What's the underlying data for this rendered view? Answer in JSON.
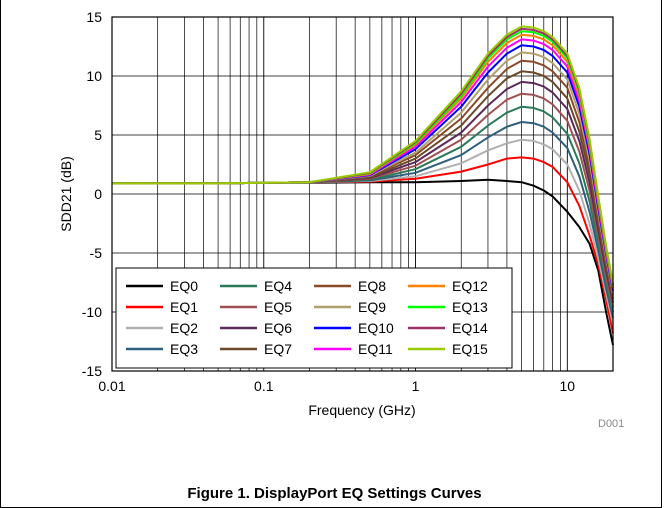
{
  "caption": "Figure 1. DisplayPort EQ Settings Curves",
  "figure_ref": "D001",
  "chart_data": {
    "type": "line",
    "xlabel": "Frequency (GHz)",
    "ylabel": "SDD21 (dB)",
    "xscale": "log",
    "xlim": [
      0.01,
      20
    ],
    "ylim": [
      -15,
      15
    ],
    "x_ticks": [
      0.01,
      0.1,
      1,
      10
    ],
    "x_tick_labels": [
      "0.01",
      "0.1",
      "1",
      "10"
    ],
    "y_ticks": [
      -15,
      -10,
      -5,
      0,
      5,
      10,
      15
    ],
    "y_tick_labels": [
      "-15",
      "-10",
      "-5",
      "0",
      "5",
      "10",
      "15"
    ],
    "grid": true,
    "legend_position": "bottom-left",
    "legend_columns": 4,
    "x": [
      0.01,
      0.05,
      0.1,
      0.2,
      0.5,
      1,
      2,
      3,
      4,
      5,
      6,
      7,
      8,
      10,
      12,
      14,
      16,
      18,
      20
    ],
    "series": [
      {
        "name": "EQ0",
        "color": "#000000",
        "values": [
          0.9,
          0.9,
          0.95,
          0.95,
          1.0,
          1.0,
          1.1,
          1.2,
          1.1,
          1.0,
          0.7,
          0.3,
          -0.2,
          -1.5,
          -2.8,
          -4.2,
          -6.5,
          -10.0,
          -12.8
        ]
      },
      {
        "name": "EQ1",
        "color": "#ff0000",
        "values": [
          0.9,
          0.9,
          0.95,
          1.0,
          1.05,
          1.3,
          1.9,
          2.5,
          3.0,
          3.1,
          3.0,
          2.7,
          2.3,
          1.0,
          -1.0,
          -3.5,
          -6.0,
          -9.0,
          -11.8
        ]
      },
      {
        "name": "EQ2",
        "color": "#b0b0b0",
        "values": [
          0.9,
          0.9,
          0.95,
          1.0,
          1.1,
          1.5,
          2.6,
          3.7,
          4.3,
          4.6,
          4.5,
          4.2,
          3.8,
          2.5,
          0.3,
          -2.5,
          -5.5,
          -8.5,
          -11.0
        ]
      },
      {
        "name": "EQ3",
        "color": "#2f5f7f",
        "values": [
          0.9,
          0.9,
          0.95,
          1.0,
          1.15,
          1.8,
          3.3,
          4.8,
          5.7,
          6.1,
          6.0,
          5.7,
          5.2,
          3.9,
          1.5,
          -1.5,
          -4.8,
          -8.0,
          -10.5
        ]
      },
      {
        "name": "EQ4",
        "color": "#2a7a5a",
        "values": [
          0.9,
          0.9,
          0.95,
          1.0,
          1.2,
          2.1,
          4.0,
          5.8,
          6.9,
          7.4,
          7.3,
          7.0,
          6.5,
          5.1,
          2.6,
          -0.6,
          -4.2,
          -7.5,
          -10.0
        ]
      },
      {
        "name": "EQ5",
        "color": "#a05050",
        "values": [
          0.9,
          0.9,
          0.95,
          1.0,
          1.3,
          2.4,
          4.6,
          6.7,
          8.0,
          8.5,
          8.4,
          8.1,
          7.6,
          6.2,
          3.6,
          0.3,
          -3.6,
          -7.0,
          -9.6
        ]
      },
      {
        "name": "EQ6",
        "color": "#5a2a5a",
        "values": [
          0.9,
          0.9,
          0.95,
          1.0,
          1.35,
          2.7,
          5.2,
          7.5,
          8.9,
          9.5,
          9.4,
          9.1,
          8.6,
          7.2,
          4.5,
          1.0,
          -3.0,
          -6.5,
          -9.2
        ]
      },
      {
        "name": "EQ7",
        "color": "#6a4a2a",
        "values": [
          0.9,
          0.9,
          0.95,
          1.0,
          1.4,
          3.0,
          5.8,
          8.3,
          9.8,
          10.4,
          10.3,
          10.0,
          9.5,
          8.1,
          5.3,
          1.7,
          -2.5,
          -6.1,
          -8.9
        ]
      },
      {
        "name": "EQ8",
        "color": "#8a4a2a",
        "values": [
          0.9,
          0.9,
          0.95,
          1.0,
          1.5,
          3.3,
          6.4,
          9.0,
          10.6,
          11.3,
          11.2,
          10.9,
          10.4,
          9.0,
          6.1,
          2.3,
          -2.0,
          -5.7,
          -8.6
        ]
      },
      {
        "name": "EQ9",
        "color": "#b0a070",
        "values": [
          0.9,
          0.9,
          0.95,
          1.0,
          1.55,
          3.5,
          6.9,
          9.7,
          11.3,
          12.0,
          11.9,
          11.6,
          11.1,
          9.7,
          6.8,
          2.9,
          -1.6,
          -5.4,
          -8.4
        ]
      },
      {
        "name": "EQ10",
        "color": "#0000ff",
        "values": [
          0.9,
          0.9,
          0.95,
          1.0,
          1.6,
          3.8,
          7.4,
          10.3,
          11.9,
          12.6,
          12.5,
          12.2,
          11.7,
          10.3,
          7.4,
          3.4,
          -1.2,
          -5.1,
          -8.2
        ]
      },
      {
        "name": "EQ11",
        "color": "#ff00ff",
        "values": [
          0.9,
          0.9,
          0.95,
          1.0,
          1.65,
          4.0,
          7.8,
          10.8,
          12.4,
          13.1,
          13.0,
          12.7,
          12.2,
          10.8,
          7.9,
          3.8,
          -0.9,
          -4.9,
          -8.0
        ]
      },
      {
        "name": "EQ12",
        "color": "#ff7f00",
        "values": [
          0.9,
          0.9,
          0.95,
          1.0,
          1.7,
          4.2,
          8.1,
          11.2,
          12.8,
          13.5,
          13.4,
          13.1,
          12.6,
          11.2,
          8.3,
          4.1,
          -0.6,
          -4.7,
          -7.9
        ]
      },
      {
        "name": "EQ13",
        "color": "#00ff00",
        "values": [
          0.9,
          0.9,
          0.95,
          1.0,
          1.75,
          4.3,
          8.3,
          11.5,
          13.1,
          13.8,
          13.7,
          13.4,
          12.9,
          11.5,
          8.6,
          4.3,
          -0.4,
          -4.6,
          -7.8
        ]
      },
      {
        "name": "EQ14",
        "color": "#a0306a",
        "values": [
          0.9,
          0.9,
          0.95,
          1.0,
          1.8,
          4.4,
          8.5,
          11.7,
          13.3,
          14.0,
          13.9,
          13.6,
          13.1,
          11.7,
          8.8,
          4.5,
          -0.3,
          -4.5,
          -7.7
        ]
      },
      {
        "name": "EQ15",
        "color": "#99cc00",
        "values": [
          0.9,
          0.9,
          0.95,
          1.0,
          1.85,
          4.5,
          8.7,
          11.9,
          13.5,
          14.2,
          14.1,
          13.8,
          13.3,
          11.9,
          9.0,
          4.7,
          -0.2,
          -4.4,
          -7.6
        ]
      }
    ]
  }
}
